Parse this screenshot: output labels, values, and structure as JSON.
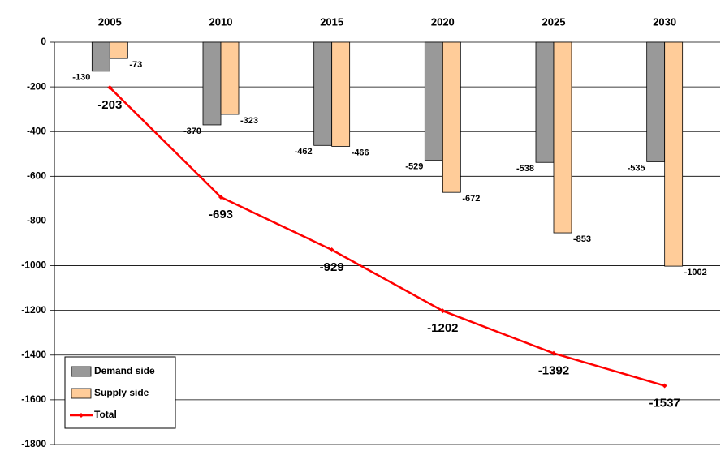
{
  "chart_data": {
    "type": "bar_line",
    "categories": [
      "2005",
      "2010",
      "2015",
      "2020",
      "2025",
      "2030"
    ],
    "series": [
      {
        "name": "Demand side",
        "type": "bar",
        "color": "#999999",
        "values": [
          -130,
          -370,
          -462,
          -529,
          -538,
          -535
        ]
      },
      {
        "name": "Supply side",
        "type": "bar",
        "color": "#ffcc99",
        "values": [
          -73,
          -323,
          -466,
          -672,
          -853,
          -1002
        ]
      },
      {
        "name": "Total",
        "type": "line",
        "color": "#ff0000",
        "values": [
          -203,
          -693,
          -929,
          -1202,
          -1392,
          -1537
        ]
      }
    ],
    "ylim": [
      -1800,
      0
    ],
    "yticks": [
      0,
      -200,
      -400,
      -600,
      -800,
      -1000,
      -1200,
      -1400,
      -1600,
      -1800
    ],
    "grid": true,
    "legend": "lower left"
  }
}
